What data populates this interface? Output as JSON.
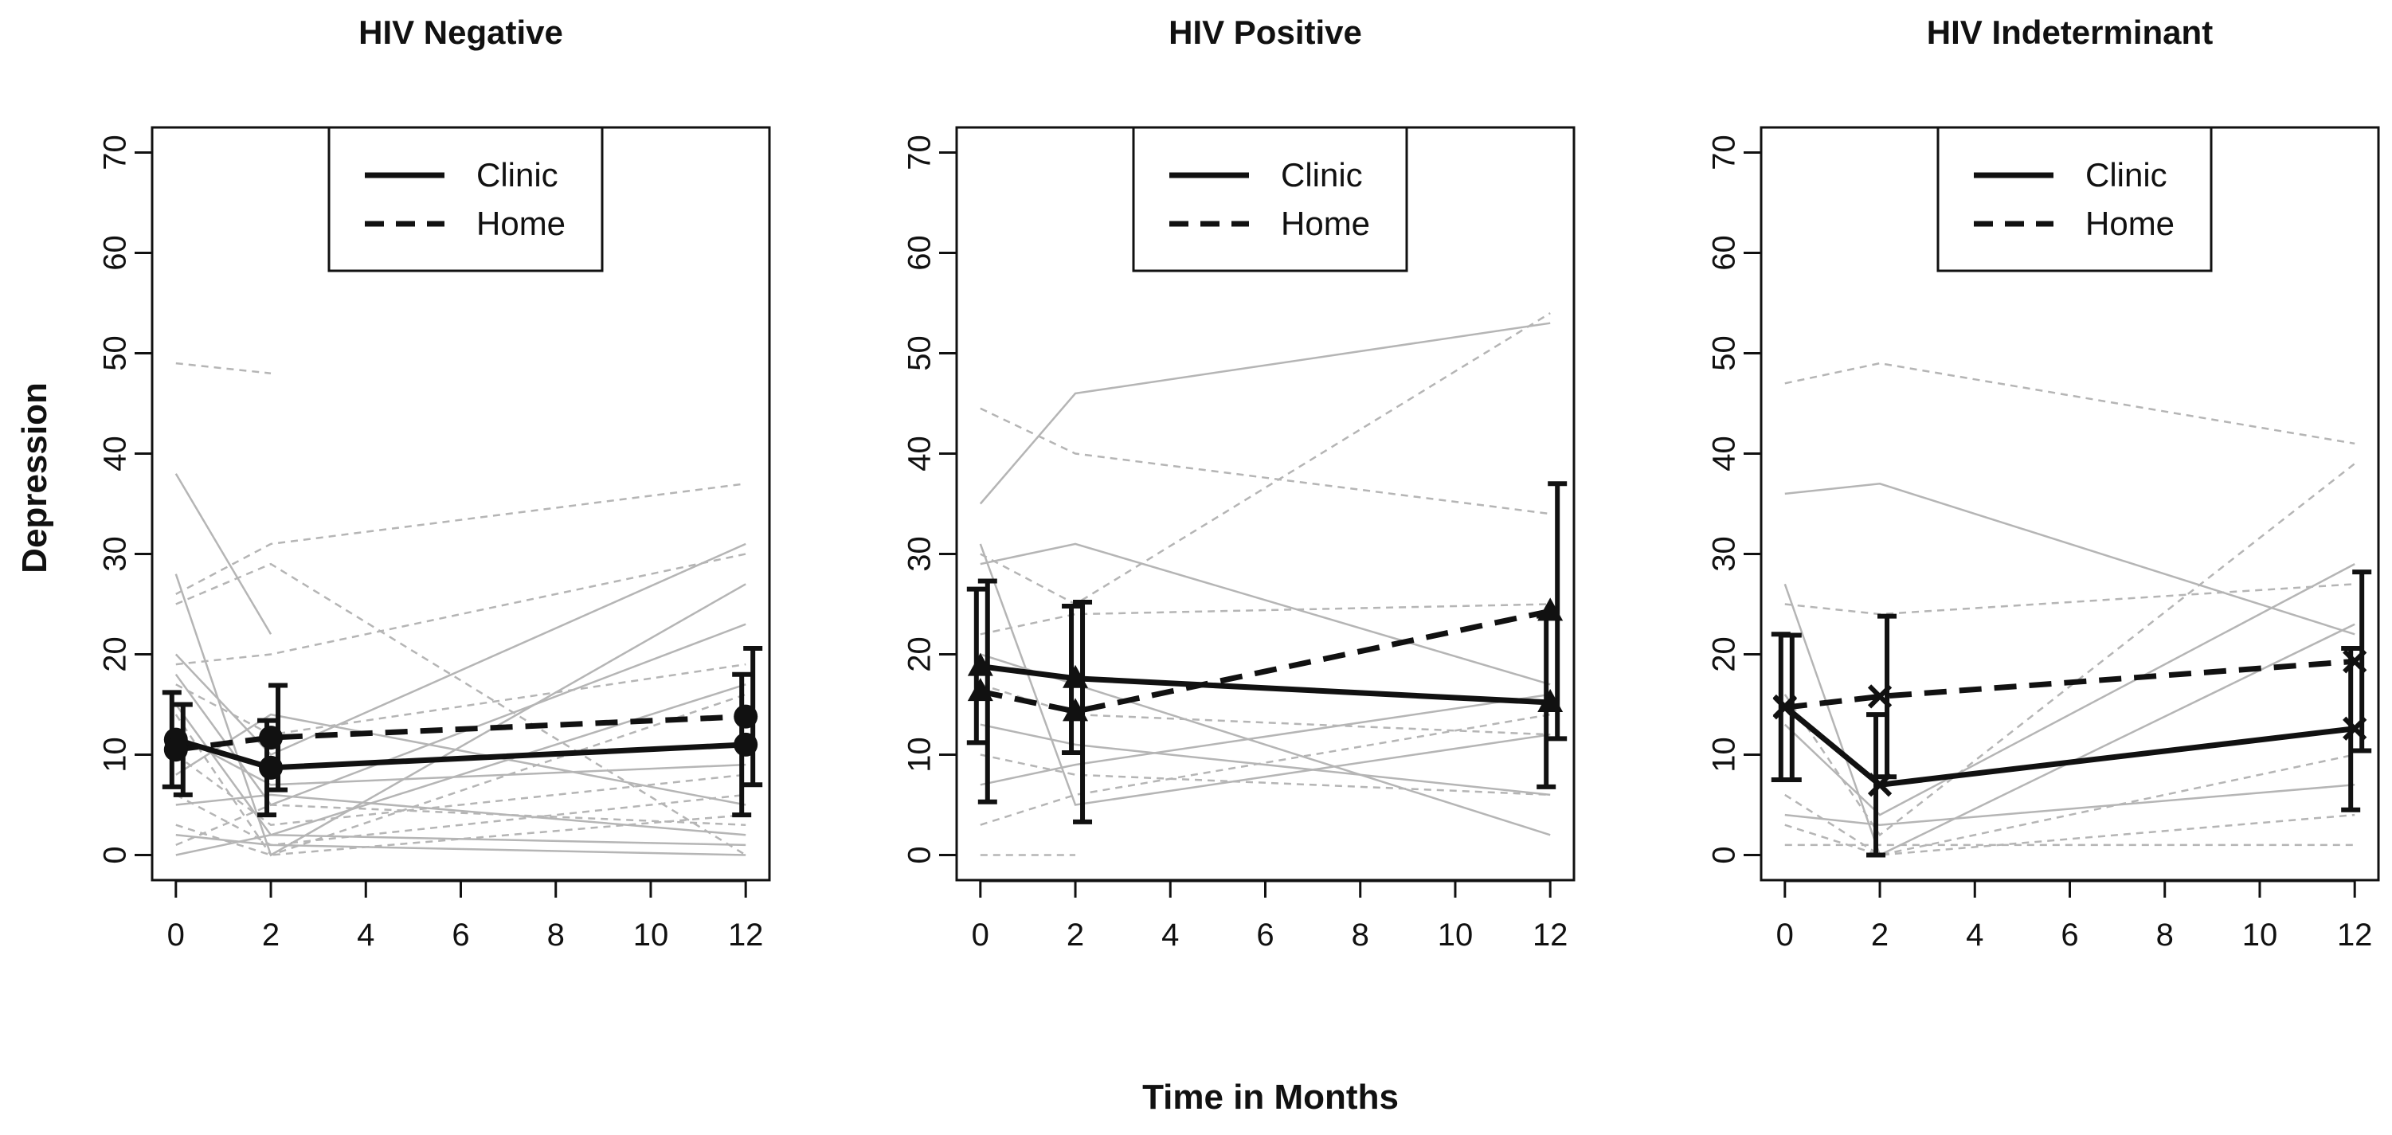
{
  "figure": {
    "ylabel": "Depression",
    "xlabel": "Time in Months"
  },
  "chart_data": [
    {
      "type": "line",
      "title": "HIV Negative",
      "xlabel": "Time in Months",
      "ylabel": "Depression",
      "xlim": [
        -0.5,
        12.5
      ],
      "ylim": [
        -2.5,
        72.5
      ],
      "x_ticks": [
        0,
        2,
        4,
        6,
        8,
        10,
        12
      ],
      "y_ticks": [
        0,
        10,
        20,
        30,
        40,
        50,
        60,
        70
      ],
      "marker": "circle",
      "legend": [
        "Clinic",
        "Home"
      ],
      "legend_position": "top-center",
      "x": [
        0,
        2,
        12
      ],
      "series": [
        {
          "name": "Clinic",
          "style": "solid",
          "values": [
            11.5,
            8.7,
            11.0
          ],
          "err_low": [
            6.8,
            4.0,
            4.0
          ],
          "err_high": [
            16.2,
            13.4,
            18.0
          ]
        },
        {
          "name": "Home",
          "style": "dashed",
          "values": [
            10.5,
            11.7,
            13.8
          ],
          "err_low": [
            6.0,
            6.5,
            7.0
          ],
          "err_high": [
            15.0,
            16.9,
            20.6
          ]
        }
      ],
      "individual_series": [
        {
          "style": "dashed",
          "values": [
            49,
            48,
            null
          ]
        },
        {
          "style": "solid",
          "values": [
            38,
            22,
            null
          ]
        },
        {
          "style": "solid",
          "values": [
            28,
            0,
            27
          ]
        },
        {
          "style": "dashed",
          "values": [
            26,
            31,
            37
          ]
        },
        {
          "style": "dashed",
          "values": [
            25,
            29,
            0
          ]
        },
        {
          "style": "solid",
          "values": [
            20,
            10,
            31
          ]
        },
        {
          "style": "dashed",
          "values": [
            19,
            20,
            30
          ]
        },
        {
          "style": "solid",
          "values": [
            18,
            5,
            23
          ]
        },
        {
          "style": "dashed",
          "values": [
            17,
            12,
            19
          ]
        },
        {
          "style": "solid",
          "values": [
            15,
            2,
            17
          ]
        },
        {
          "style": "dashed",
          "values": [
            14,
            0,
            16
          ]
        },
        {
          "style": "solid",
          "values": [
            12,
            7,
            9
          ]
        },
        {
          "style": "dashed",
          "values": [
            10,
            3,
            8
          ]
        },
        {
          "style": "solid",
          "values": [
            8,
            14,
            5
          ]
        },
        {
          "style": "dashed",
          "values": [
            6,
            1,
            6
          ]
        },
        {
          "style": "solid",
          "values": [
            5,
            6,
            2
          ]
        },
        {
          "style": "dashed",
          "values": [
            3,
            0,
            4
          ]
        },
        {
          "style": "solid",
          "values": [
            2,
            1,
            0
          ]
        },
        {
          "style": "dashed",
          "values": [
            1,
            5,
            3
          ]
        },
        {
          "style": "solid",
          "values": [
            0,
            2,
            1
          ]
        }
      ]
    },
    {
      "type": "line",
      "title": "HIV Positive",
      "xlabel": "Time in Months",
      "ylabel": "Depression",
      "xlim": [
        -0.5,
        12.5
      ],
      "ylim": [
        -2.5,
        72.5
      ],
      "x_ticks": [
        0,
        2,
        4,
        6,
        8,
        10,
        12
      ],
      "y_ticks": [
        0,
        10,
        20,
        30,
        40,
        50,
        60,
        70
      ],
      "marker": "triangle",
      "legend": [
        "Clinic",
        "Home"
      ],
      "legend_position": "top-center",
      "x": [
        0,
        2,
        12
      ],
      "series": [
        {
          "name": "Clinic",
          "style": "solid",
          "values": [
            18.8,
            17.6,
            15.2
          ],
          "err_low": [
            11.2,
            10.2,
            6.8
          ],
          "err_high": [
            26.5,
            24.8,
            23.8
          ]
        },
        {
          "name": "Home",
          "style": "dashed",
          "values": [
            16.3,
            14.3,
            24.3
          ],
          "err_low": [
            5.3,
            3.3,
            11.6
          ],
          "err_high": [
            27.3,
            25.2,
            37.0
          ]
        }
      ],
      "individual_series": [
        {
          "style": "dashed",
          "values": [
            44.5,
            40,
            34
          ]
        },
        {
          "style": "solid",
          "values": [
            35,
            46,
            53
          ]
        },
        {
          "style": "solid",
          "values": [
            31,
            5,
            12
          ]
        },
        {
          "style": "dashed",
          "values": [
            30,
            25,
            54
          ]
        },
        {
          "style": "solid",
          "values": [
            29,
            31,
            17
          ]
        },
        {
          "style": "dashed",
          "values": [
            22,
            24,
            25
          ]
        },
        {
          "style": "solid",
          "values": [
            20,
            17,
            2
          ]
        },
        {
          "style": "dashed",
          "values": [
            17,
            14,
            12
          ]
        },
        {
          "style": "solid",
          "values": [
            13,
            11,
            6
          ]
        },
        {
          "style": "dashed",
          "values": [
            10,
            8,
            6
          ]
        },
        {
          "style": "solid",
          "values": [
            7,
            9,
            16
          ]
        },
        {
          "style": "dashed",
          "values": [
            3,
            6,
            14
          ]
        },
        {
          "style": "dashed",
          "values": [
            0,
            0,
            null
          ]
        }
      ]
    },
    {
      "type": "line",
      "title": "HIV Indeterminant",
      "xlabel": "Time in Months",
      "ylabel": "Depression",
      "xlim": [
        -0.5,
        12.5
      ],
      "ylim": [
        -2.5,
        72.5
      ],
      "x_ticks": [
        0,
        2,
        4,
        6,
        8,
        10,
        12
      ],
      "y_ticks": [
        0,
        10,
        20,
        30,
        40,
        50,
        60,
        70
      ],
      "marker": "x",
      "legend": [
        "Clinic",
        "Home"
      ],
      "legend_position": "top-center",
      "x": [
        0,
        2,
        12
      ],
      "series": [
        {
          "name": "Clinic",
          "style": "solid",
          "values": [
            14.8,
            7.0,
            12.6
          ],
          "err_low": [
            7.5,
            0.0,
            4.5
          ],
          "err_high": [
            22.0,
            14.0,
            20.6
          ]
        },
        {
          "name": "Home",
          "style": "dashed",
          "values": [
            14.7,
            15.8,
            19.3
          ],
          "err_low": [
            7.5,
            7.8,
            10.4
          ],
          "err_high": [
            21.9,
            23.8,
            28.2
          ]
        }
      ],
      "individual_series": [
        {
          "style": "dashed",
          "values": [
            47,
            49,
            41
          ]
        },
        {
          "style": "solid",
          "values": [
            36,
            37,
            22
          ]
        },
        {
          "style": "solid",
          "values": [
            27,
            0,
            23
          ]
        },
        {
          "style": "dashed",
          "values": [
            25,
            24,
            27
          ]
        },
        {
          "style": "dashed",
          "values": [
            16,
            2,
            39
          ]
        },
        {
          "style": "solid",
          "values": [
            13,
            4,
            29
          ]
        },
        {
          "style": "dashed",
          "values": [
            6,
            0,
            10
          ]
        },
        {
          "style": "solid",
          "values": [
            4,
            3,
            7
          ]
        },
        {
          "style": "dashed",
          "values": [
            3,
            0,
            4
          ]
        },
        {
          "style": "dashed",
          "values": [
            1,
            1,
            1
          ]
        }
      ]
    }
  ]
}
